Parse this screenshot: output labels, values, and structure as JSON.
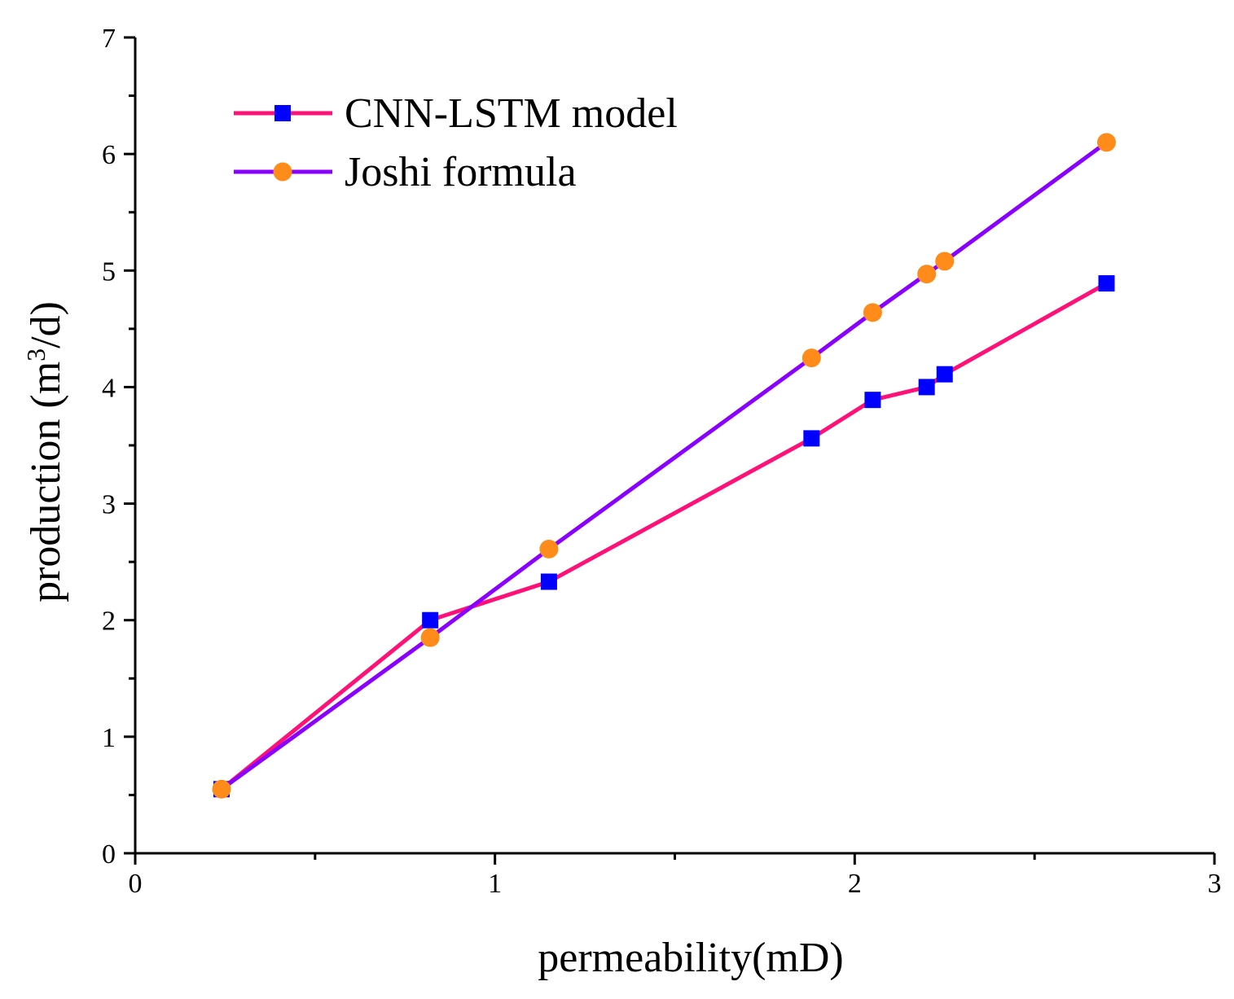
{
  "chart_data": {
    "type": "line",
    "title": "",
    "xlabel": "permeability(mD)",
    "ylabel_prefix": "production (m",
    "ylabel_sup": "3",
    "ylabel_suffix": "/d)",
    "xlim": [
      0,
      3
    ],
    "ylim": [
      0,
      7
    ],
    "xticks": [
      0,
      1,
      2,
      3
    ],
    "yticks": [
      0,
      1,
      2,
      3,
      4,
      5,
      6,
      7
    ],
    "x_minor_step": 0.5,
    "y_minor_step": 0.5,
    "grid": false,
    "legend_position": "top-left",
    "series": [
      {
        "name": "CNN-LSTM model",
        "color": "#ff1177",
        "marker": "square",
        "marker_color": "#0000ff",
        "x": [
          0.24,
          0.82,
          1.15,
          1.88,
          2.05,
          2.2,
          2.25,
          2.7
        ],
        "y": [
          0.55,
          2.0,
          2.33,
          3.56,
          3.89,
          4.0,
          4.11,
          4.89
        ]
      },
      {
        "name": "Joshi formula",
        "color": "#8a00ff",
        "marker": "circle",
        "marker_color": "#ff8c1a",
        "x": [
          0.24,
          0.82,
          1.15,
          1.88,
          2.05,
          2.2,
          2.25,
          2.7
        ],
        "y": [
          0.55,
          1.85,
          2.61,
          4.25,
          4.64,
          4.97,
          5.08,
          6.1
        ]
      }
    ]
  }
}
